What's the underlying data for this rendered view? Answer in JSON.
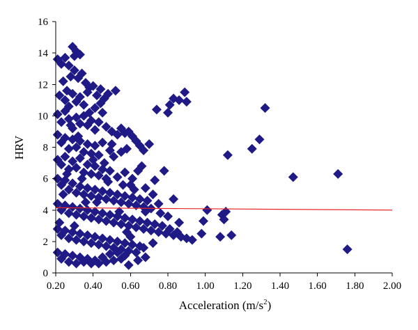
{
  "chart_data": {
    "type": "scatter",
    "title": "",
    "xlabel": "Acceleration (m/s",
    "xlabel_sup": "2",
    "xlabel_close": ")",
    "ylabel": "HRV",
    "xlim": [
      0.2,
      2.0
    ],
    "ylim": [
      0,
      16
    ],
    "x_ticks": [
      "0.20",
      "0.40",
      "0.60",
      "0.80",
      "1.00",
      "1.20",
      "1.40",
      "1.60",
      "1.80",
      "2.00"
    ],
    "y_ticks": [
      "0",
      "2",
      "4",
      "6",
      "8",
      "10",
      "12",
      "14",
      "16"
    ],
    "grid": false,
    "legend": "none",
    "marker": "diamond",
    "marker_color": "#1f1a85",
    "trend_color": "#e8262a",
    "trendline": {
      "x": [
        0.2,
        2.0
      ],
      "y": [
        4.15,
        4.0
      ]
    },
    "points": [
      [
        0.21,
        13.6
      ],
      [
        0.23,
        13.3
      ],
      [
        0.25,
        13.7
      ],
      [
        0.27,
        13.2
      ],
      [
        0.29,
        14.4
      ],
      [
        0.3,
        13.8
      ],
      [
        0.31,
        14.1
      ],
      [
        0.33,
        13.9
      ],
      [
        0.24,
        12.2
      ],
      [
        0.26,
        11.6
      ],
      [
        0.28,
        12.5
      ],
      [
        0.3,
        12.9
      ],
      [
        0.32,
        12.4
      ],
      [
        0.34,
        12.7
      ],
      [
        0.36,
        12.1
      ],
      [
        0.38,
        11.8
      ],
      [
        0.22,
        11.3
      ],
      [
        0.25,
        11.0
      ],
      [
        0.27,
        10.6
      ],
      [
        0.29,
        11.4
      ],
      [
        0.31,
        10.9
      ],
      [
        0.33,
        11.2
      ],
      [
        0.35,
        10.7
      ],
      [
        0.37,
        11.5
      ],
      [
        0.4,
        11.9
      ],
      [
        0.42,
        11.3
      ],
      [
        0.44,
        11.7
      ],
      [
        0.46,
        11.1
      ],
      [
        0.48,
        11.4
      ],
      [
        0.52,
        11.6
      ],
      [
        0.45,
        10.2
      ],
      [
        0.41,
        10.5
      ],
      [
        0.21,
        10.1
      ],
      [
        0.23,
        9.6
      ],
      [
        0.25,
        10.3
      ],
      [
        0.27,
        9.8
      ],
      [
        0.29,
        9.2
      ],
      [
        0.31,
        9.9
      ],
      [
        0.33,
        9.5
      ],
      [
        0.35,
        10.0
      ],
      [
        0.37,
        9.4
      ],
      [
        0.39,
        9.7
      ],
      [
        0.41,
        9.1
      ],
      [
        0.43,
        9.6
      ],
      [
        0.47,
        9.3
      ],
      [
        0.5,
        9.0
      ],
      [
        0.53,
        8.8
      ],
      [
        0.55,
        9.2
      ],
      [
        0.57,
        8.9
      ],
      [
        0.59,
        9.0
      ],
      [
        0.61,
        8.7
      ],
      [
        0.63,
        8.4
      ],
      [
        0.65,
        8.1
      ],
      [
        0.67,
        7.8
      ],
      [
        0.7,
        8.2
      ],
      [
        0.58,
        7.9
      ],
      [
        0.21,
        8.8
      ],
      [
        0.23,
        8.3
      ],
      [
        0.25,
        8.6
      ],
      [
        0.27,
        7.9
      ],
      [
        0.29,
        8.5
      ],
      [
        0.31,
        8.0
      ],
      [
        0.33,
        8.4
      ],
      [
        0.35,
        7.7
      ],
      [
        0.37,
        8.2
      ],
      [
        0.39,
        7.6
      ],
      [
        0.41,
        8.1
      ],
      [
        0.43,
        7.5
      ],
      [
        0.45,
        8.3
      ],
      [
        0.49,
        7.8
      ],
      [
        0.51,
        7.4
      ],
      [
        0.55,
        7.7
      ],
      [
        0.21,
        7.2
      ],
      [
        0.23,
        6.9
      ],
      [
        0.25,
        7.4
      ],
      [
        0.27,
        6.6
      ],
      [
        0.29,
        7.1
      ],
      [
        0.31,
        6.7
      ],
      [
        0.33,
        7.3
      ],
      [
        0.35,
        6.4
      ],
      [
        0.37,
        6.9
      ],
      [
        0.39,
        6.3
      ],
      [
        0.41,
        6.8
      ],
      [
        0.43,
        6.2
      ],
      [
        0.45,
        6.6
      ],
      [
        0.47,
        6.0
      ],
      [
        0.49,
        6.5
      ],
      [
        0.53,
        6.1
      ],
      [
        0.57,
        6.4
      ],
      [
        0.61,
        6.0
      ],
      [
        0.64,
        6.5
      ],
      [
        0.66,
        6.8
      ],
      [
        0.73,
        5.9
      ],
      [
        0.78,
        6.5
      ],
      [
        0.6,
        5.6
      ],
      [
        0.68,
        5.4
      ],
      [
        0.21,
        6.0
      ],
      [
        0.23,
        5.6
      ],
      [
        0.25,
        5.9
      ],
      [
        0.27,
        5.3
      ],
      [
        0.29,
        5.7
      ],
      [
        0.31,
        5.1
      ],
      [
        0.33,
        5.5
      ],
      [
        0.35,
        5.0
      ],
      [
        0.37,
        5.4
      ],
      [
        0.39,
        4.9
      ],
      [
        0.41,
        5.3
      ],
      [
        0.43,
        4.8
      ],
      [
        0.45,
        5.2
      ],
      [
        0.47,
        4.7
      ],
      [
        0.49,
        5.1
      ],
      [
        0.51,
        4.6
      ],
      [
        0.53,
        5.0
      ],
      [
        0.55,
        4.5
      ],
      [
        0.57,
        4.9
      ],
      [
        0.59,
        4.4
      ],
      [
        0.61,
        4.8
      ],
      [
        0.63,
        4.3
      ],
      [
        0.65,
        4.7
      ],
      [
        0.67,
        4.2
      ],
      [
        0.69,
        4.6
      ],
      [
        0.71,
        4.1
      ],
      [
        0.75,
        4.4
      ],
      [
        0.83,
        4.7
      ],
      [
        0.72,
        5.0
      ],
      [
        0.62,
        5.3
      ],
      [
        0.56,
        5.6
      ],
      [
        0.48,
        5.8
      ],
      [
        0.21,
        4.4
      ],
      [
        0.23,
        4.0
      ],
      [
        0.25,
        4.3
      ],
      [
        0.27,
        3.8
      ],
      [
        0.29,
        4.2
      ],
      [
        0.31,
        3.7
      ],
      [
        0.33,
        4.1
      ],
      [
        0.35,
        3.6
      ],
      [
        0.37,
        4.0
      ],
      [
        0.39,
        3.5
      ],
      [
        0.41,
        3.9
      ],
      [
        0.43,
        3.4
      ],
      [
        0.45,
        3.8
      ],
      [
        0.47,
        3.3
      ],
      [
        0.49,
        3.7
      ],
      [
        0.51,
        3.2
      ],
      [
        0.53,
        3.6
      ],
      [
        0.55,
        3.1
      ],
      [
        0.57,
        3.5
      ],
      [
        0.59,
        3.0
      ],
      [
        0.61,
        3.4
      ],
      [
        0.63,
        2.9
      ],
      [
        0.65,
        3.3
      ],
      [
        0.67,
        2.8
      ],
      [
        0.69,
        3.2
      ],
      [
        0.71,
        2.7
      ],
      [
        0.73,
        3.1
      ],
      [
        0.75,
        2.6
      ],
      [
        0.77,
        3.0
      ],
      [
        0.79,
        2.5
      ],
      [
        0.81,
        2.8
      ],
      [
        0.83,
        2.4
      ],
      [
        0.85,
        2.6
      ],
      [
        0.87,
        2.3
      ],
      [
        0.9,
        2.2
      ],
      [
        0.93,
        2.1
      ],
      [
        0.76,
        3.8
      ],
      [
        0.8,
        3.6
      ],
      [
        0.68,
        3.9
      ],
      [
        0.86,
        3.2
      ],
      [
        0.21,
        2.8
      ],
      [
        0.23,
        2.4
      ],
      [
        0.25,
        2.7
      ],
      [
        0.27,
        2.2
      ],
      [
        0.29,
        2.6
      ],
      [
        0.31,
        2.1
      ],
      [
        0.33,
        2.5
      ],
      [
        0.35,
        2.0
      ],
      [
        0.37,
        2.4
      ],
      [
        0.39,
        1.9
      ],
      [
        0.41,
        2.3
      ],
      [
        0.43,
        1.8
      ],
      [
        0.45,
        2.2
      ],
      [
        0.47,
        1.7
      ],
      [
        0.49,
        2.1
      ],
      [
        0.51,
        1.6
      ],
      [
        0.53,
        2.0
      ],
      [
        0.55,
        1.5
      ],
      [
        0.57,
        1.9
      ],
      [
        0.59,
        1.4
      ],
      [
        0.61,
        1.8
      ],
      [
        0.63,
        1.3
      ],
      [
        0.65,
        1.7
      ],
      [
        0.67,
        1.6
      ],
      [
        0.21,
        1.3
      ],
      [
        0.23,
        0.9
      ],
      [
        0.25,
        1.2
      ],
      [
        0.27,
        0.7
      ],
      [
        0.29,
        1.1
      ],
      [
        0.31,
        0.6
      ],
      [
        0.33,
        1.0
      ],
      [
        0.35,
        0.7
      ],
      [
        0.37,
        0.9
      ],
      [
        0.39,
        0.6
      ],
      [
        0.41,
        0.8
      ],
      [
        0.43,
        0.6
      ],
      [
        0.45,
        1.0
      ],
      [
        0.47,
        0.7
      ],
      [
        0.49,
        1.2
      ],
      [
        0.51,
        0.8
      ],
      [
        0.53,
        1.3
      ],
      [
        0.55,
        0.9
      ],
      [
        0.57,
        1.1
      ],
      [
        0.59,
        0.5
      ],
      [
        0.64,
        0.8
      ],
      [
        0.68,
        1.0
      ],
      [
        0.72,
        1.9
      ],
      [
        0.6,
        2.3
      ],
      [
        0.22,
        3.2
      ],
      [
        0.24,
        5.0
      ],
      [
        0.26,
        6.3
      ],
      [
        0.28,
        9.4
      ],
      [
        0.3,
        3.0
      ],
      [
        0.32,
        8.7
      ],
      [
        0.34,
        6.0
      ],
      [
        0.36,
        4.5
      ],
      [
        0.38,
        10.2
      ],
      [
        0.4,
        7.2
      ],
      [
        0.42,
        4.5
      ],
      [
        0.44,
        10.8
      ],
      [
        0.46,
        7.0
      ],
      [
        0.5,
        8.2
      ],
      [
        0.54,
        3.9
      ],
      [
        0.58,
        2.6
      ],
      [
        0.74,
        10.4
      ],
      [
        0.81,
        10.7
      ],
      [
        0.8,
        10.2
      ],
      [
        0.83,
        11.1
      ],
      [
        0.86,
        11.0
      ],
      [
        0.89,
        11.5
      ],
      [
        0.9,
        10.9
      ],
      [
        0.99,
        3.3
      ],
      [
        0.98,
        2.5
      ],
      [
        1.01,
        4.0
      ],
      [
        1.08,
        2.3
      ],
      [
        1.09,
        3.7
      ],
      [
        1.1,
        3.4
      ],
      [
        1.11,
        3.9
      ],
      [
        1.14,
        2.4
      ],
      [
        1.12,
        7.5
      ],
      [
        1.25,
        7.9
      ],
      [
        1.29,
        8.5
      ],
      [
        1.32,
        10.5
      ],
      [
        1.47,
        6.1
      ],
      [
        1.71,
        6.3
      ],
      [
        1.76,
        1.5
      ]
    ]
  }
}
